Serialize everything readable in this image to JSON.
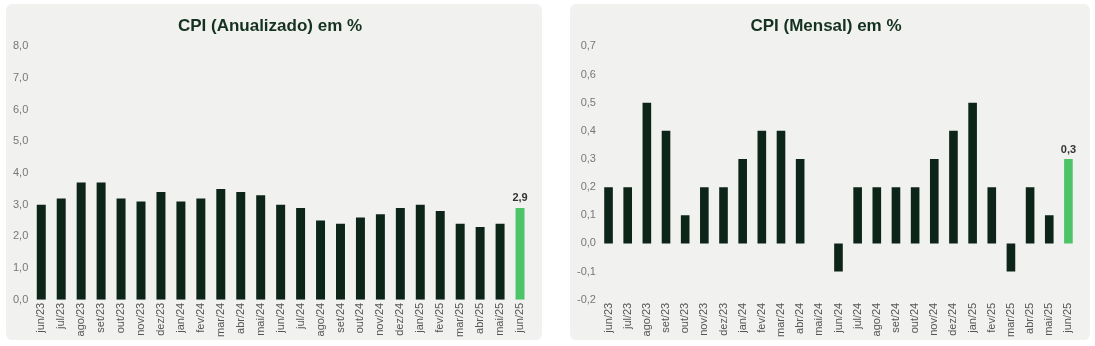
{
  "chart_data": [
    {
      "type": "bar",
      "title": "CPI (Anualizado) em %",
      "categories": [
        "jun/23",
        "jul/23",
        "ago/23",
        "set/23",
        "out/23",
        "nov/23",
        "dez/23",
        "jan/24",
        "fev/24",
        "mar/24",
        "abr/24",
        "mai/24",
        "jun/24",
        "jul/24",
        "ago/24",
        "set/24",
        "out/24",
        "nov/24",
        "dez/24",
        "jan/25",
        "fev/25",
        "mar/25",
        "abr/25",
        "mai/25",
        "jun/25"
      ],
      "values": [
        3.0,
        3.2,
        3.7,
        3.7,
        3.2,
        3.1,
        3.4,
        3.1,
        3.2,
        3.5,
        3.4,
        3.3,
        3.0,
        2.9,
        2.5,
        2.4,
        2.6,
        2.7,
        2.9,
        3.0,
        2.8,
        2.4,
        2.3,
        2.4,
        2.9
      ],
      "colors": [
        "#0d2419",
        "#0d2419",
        "#0d2419",
        "#0d2419",
        "#0d2419",
        "#0d2419",
        "#0d2419",
        "#0d2419",
        "#0d2419",
        "#0d2419",
        "#0d2419",
        "#0d2419",
        "#0d2419",
        "#0d2419",
        "#0d2419",
        "#0d2419",
        "#0d2419",
        "#0d2419",
        "#0d2419",
        "#0d2419",
        "#0d2419",
        "#0d2419",
        "#0d2419",
        "#0d2419",
        "#4cc467"
      ],
      "value_labels": [
        null,
        null,
        null,
        null,
        null,
        null,
        null,
        null,
        null,
        null,
        null,
        null,
        null,
        null,
        null,
        null,
        null,
        null,
        null,
        null,
        null,
        null,
        null,
        null,
        "2,9"
      ],
      "ylim": [
        0,
        8
      ],
      "yticks": [
        {
          "value": 0,
          "label": "0,0"
        },
        {
          "value": 1,
          "label": "1,0"
        },
        {
          "value": 2,
          "label": "2,0"
        },
        {
          "value": 3,
          "label": "3,0"
        },
        {
          "value": 4,
          "label": "4,0"
        },
        {
          "value": 5,
          "label": "5,0"
        },
        {
          "value": 6,
          "label": "6,0"
        },
        {
          "value": 7,
          "label": "7,0"
        },
        {
          "value": 8,
          "label": "8,0"
        }
      ],
      "grid": false,
      "legend": false
    },
    {
      "type": "bar",
      "title": "CPI (Mensal) em %",
      "categories": [
        "jun/23",
        "jul/23",
        "ago/23",
        "set/23",
        "out/23",
        "nov/23",
        "dez/23",
        "jan/24",
        "fev/24",
        "mar/24",
        "abr/24",
        "mai/24",
        "jun/24",
        "jul/24",
        "ago/24",
        "set/24",
        "out/24",
        "nov/24",
        "dez/24",
        "jan/25",
        "fev/25",
        "mar/25",
        "abr/25",
        "mai/25",
        "jun/25"
      ],
      "values": [
        0.2,
        0.2,
        0.5,
        0.4,
        0.1,
        0.2,
        0.2,
        0.3,
        0.4,
        0.4,
        0.3,
        0.0,
        -0.1,
        0.2,
        0.2,
        0.2,
        0.2,
        0.3,
        0.4,
        0.5,
        0.2,
        -0.1,
        0.2,
        0.1,
        0.3
      ],
      "colors": [
        "#0d2419",
        "#0d2419",
        "#0d2419",
        "#0d2419",
        "#0d2419",
        "#0d2419",
        "#0d2419",
        "#0d2419",
        "#0d2419",
        "#0d2419",
        "#0d2419",
        "#0d2419",
        "#0d2419",
        "#0d2419",
        "#0d2419",
        "#0d2419",
        "#0d2419",
        "#0d2419",
        "#0d2419",
        "#0d2419",
        "#0d2419",
        "#0d2419",
        "#0d2419",
        "#0d2419",
        "#4cc467"
      ],
      "value_labels": [
        null,
        null,
        null,
        null,
        null,
        null,
        null,
        null,
        null,
        null,
        null,
        null,
        null,
        null,
        null,
        null,
        null,
        null,
        null,
        null,
        null,
        null,
        null,
        null,
        "0,3"
      ],
      "ylim": [
        -0.2,
        0.7
      ],
      "yticks": [
        {
          "value": -0.2,
          "label": "-0,2"
        },
        {
          "value": -0.1,
          "label": "-0,1"
        },
        {
          "value": 0,
          "label": "0,0"
        },
        {
          "value": 0.1,
          "label": "0,1"
        },
        {
          "value": 0.2,
          "label": "0,2"
        },
        {
          "value": 0.3,
          "label": "0,3"
        },
        {
          "value": 0.4,
          "label": "0,4"
        },
        {
          "value": 0.5,
          "label": "0,5"
        },
        {
          "value": 0.6,
          "label": "0,6"
        },
        {
          "value": 0.7,
          "label": "0,7"
        }
      ],
      "grid": false,
      "legend": false
    }
  ]
}
